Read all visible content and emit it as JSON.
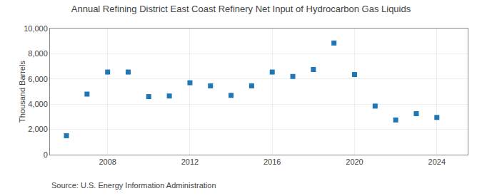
{
  "chart_data": {
    "type": "scatter",
    "title": "Annual Refining District East Coast Refinery Net Input of Hydrocarbon Gas Liquids",
    "ylabel": "Thousand Barrels",
    "annotations": [
      "Source: U.S. Energy Information Administration"
    ],
    "x": [
      2006,
      2007,
      2008,
      2009,
      2010,
      2011,
      2012,
      2013,
      2014,
      2015,
      2016,
      2017,
      2018,
      2019,
      2020,
      2021,
      2022,
      2023,
      2024
    ],
    "values": [
      1500,
      4800,
      6550,
      6550,
      4600,
      4650,
      5700,
      5450,
      4700,
      5450,
      6550,
      6200,
      6750,
      8850,
      6350,
      3850,
      2750,
      3250,
      2950
    ],
    "marker": "square",
    "xlim": [
      2005.2,
      2025.5
    ],
    "xticks": [
      2008,
      2012,
      2016,
      2020,
      2024
    ],
    "ylim": [
      0,
      10000
    ],
    "yticks": [
      0,
      {
        "value": 2000,
        "label": "2,000"
      },
      {
        "value": 4000,
        "label": "4,000"
      },
      {
        "value": 6000,
        "label": "6,000"
      },
      {
        "value": 8000,
        "label": "8,000"
      },
      {
        "value": 10000,
        "label": "10,000"
      }
    ],
    "grid": true
  }
}
